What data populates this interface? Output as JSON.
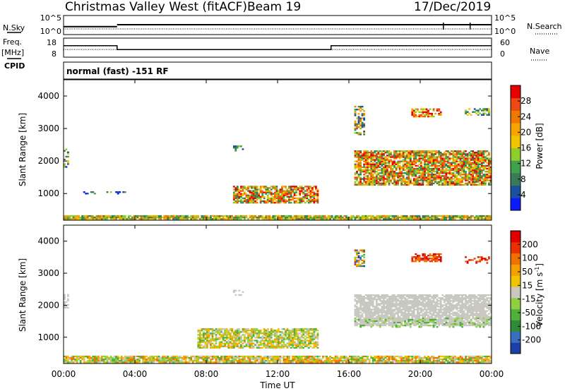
{
  "header": {
    "title": "Christmas Valley West (fitACF)",
    "beam": "Beam 19",
    "date": "17/Dec/2019"
  },
  "left_labels": {
    "nsky": "N.Sky",
    "freq": "Freq.",
    "freq_unit": "[MHz]",
    "cpid": "CPID"
  },
  "right_labels": {
    "nsearch": "N.Search",
    "nave": "Nave"
  },
  "cpid_text": "normal (fast) -151 RF",
  "chart_data": [
    {
      "type": "line",
      "name": "noise-panel",
      "left_ticks": [
        "10^5",
        "10^0"
      ],
      "right_ticks": [
        "10^5",
        "10^0"
      ],
      "series": [
        {
          "name": "N.Sky",
          "style": "solid",
          "level": 0.18,
          "segments": [
            [
              0,
              3,
              0.12
            ],
            [
              3,
              24,
              0.22
            ]
          ]
        },
        {
          "name": "N.Search",
          "style": "dotted",
          "level": 0.15
        }
      ],
      "spikes_hours": [
        21.3,
        22.8
      ]
    },
    {
      "type": "line",
      "name": "freq-panel",
      "left_ticks": [
        "18",
        "8"
      ],
      "right_ticks": [
        "60",
        "0"
      ],
      "freq_segments": [
        {
          "x0": 0,
          "x1": 3,
          "value": 11
        },
        {
          "x0": 3,
          "x1": 15,
          "value": 9
        },
        {
          "x0": 15,
          "x1": 24,
          "value": 11
        }
      ],
      "nave_level_fraction": 0.45
    },
    {
      "type": "heatmap",
      "name": "power",
      "xlabel": "",
      "ylabel": "Slant Range [km]",
      "x_ticks": [
        "00:00",
        "04:00",
        "08:00",
        "12:00",
        "16:00",
        "20:00",
        "00:00"
      ],
      "y_ticks": [
        1000,
        2000,
        3000,
        4000
      ],
      "xlim": [
        0,
        24
      ],
      "ylim": [
        180,
        4500
      ],
      "colorbar_label": "Power [dB]",
      "colorbar_ticks": [
        "4",
        "8",
        "12",
        "16",
        "20",
        "24",
        "28"
      ],
      "colorbar_colors": [
        "#0a1bff",
        "#1d4fa0",
        "#3a7a55",
        "#3fa24a",
        "#8fcd2a",
        "#f0c400",
        "#f5a400",
        "#f07800",
        "#ec4a10",
        "#e60000"
      ],
      "regions": [
        {
          "t0": 0,
          "t1": 24,
          "r0": 200,
          "r1": 330,
          "density": 0.9,
          "c": [
            2,
            7
          ]
        },
        {
          "t0": 0,
          "t1": 0.3,
          "r0": 1800,
          "r1": 2350,
          "density": 0.5,
          "c": [
            0,
            5
          ]
        },
        {
          "t0": 1,
          "t1": 3.5,
          "r0": 980,
          "r1": 1070,
          "density": 0.35,
          "c": [
            0,
            4
          ]
        },
        {
          "t0": 9.5,
          "t1": 14.2,
          "r0": 700,
          "r1": 1200,
          "density": 0.75,
          "c": [
            2,
            9
          ]
        },
        {
          "t0": 9.5,
          "t1": 10,
          "r0": 2300,
          "r1": 2450,
          "density": 0.5,
          "c": [
            1,
            4
          ]
        },
        {
          "t0": 16.3,
          "t1": 24,
          "r0": 1250,
          "r1": 2300,
          "density": 0.8,
          "c": [
            2,
            9
          ]
        },
        {
          "t0": 16.3,
          "t1": 16.9,
          "r0": 2800,
          "r1": 3700,
          "density": 0.5,
          "c": [
            1,
            7
          ]
        },
        {
          "t0": 19.5,
          "t1": 21.2,
          "r0": 3350,
          "r1": 3600,
          "density": 0.6,
          "c": [
            4,
            9
          ]
        },
        {
          "t0": 22.5,
          "t1": 23.9,
          "r0": 3400,
          "r1": 3600,
          "density": 0.4,
          "c": [
            1,
            5
          ]
        }
      ]
    },
    {
      "type": "heatmap",
      "name": "velocity",
      "xlabel": "Time UT",
      "ylabel": "Slant Range [km]",
      "x_ticks": [
        "00:00",
        "04:00",
        "08:00",
        "12:00",
        "16:00",
        "20:00",
        "00:00"
      ],
      "y_ticks": [
        1000,
        2000,
        3000,
        4000
      ],
      "xlim": [
        0,
        24
      ],
      "ylim": [
        180,
        4500
      ],
      "colorbar_label": "Velocity [m s",
      "colorbar_label_sup": "-1",
      "colorbar_ticks": [
        "200",
        "100",
        "50",
        "15",
        "-15",
        "-50",
        "-100",
        "-200"
      ],
      "colorbar_colors": [
        "#1f3fa8",
        "#3a6fc0",
        "#2e8b3a",
        "#52b03a",
        "#8fd040",
        "#c8c8c0",
        "#f0c400",
        "#f5a000",
        "#f07000",
        "#e83000",
        "#e00000"
      ],
      "regions": [
        {
          "t0": 0,
          "t1": 24,
          "r0": 200,
          "r1": 420,
          "density": 0.85,
          "c": [
            3,
            8
          ]
        },
        {
          "t0": 0,
          "t1": 0.3,
          "r0": 1900,
          "r1": 2350,
          "density": 0.5,
          "c": [
            5,
            5
          ]
        },
        {
          "t0": 9.5,
          "t1": 10,
          "r0": 2300,
          "r1": 2450,
          "density": 0.5,
          "c": [
            5,
            5
          ]
        },
        {
          "t0": 7.5,
          "t1": 14.2,
          "r0": 650,
          "r1": 1250,
          "density": 0.75,
          "c": [
            3,
            7
          ]
        },
        {
          "t0": 16.3,
          "t1": 24,
          "r0": 1350,
          "r1": 2300,
          "density": 0.85,
          "c": [
            5,
            5
          ]
        },
        {
          "t0": 16.3,
          "t1": 24,
          "r0": 1300,
          "r1": 1600,
          "density": 0.2,
          "c": [
            3,
            4
          ]
        },
        {
          "t0": 16.3,
          "t1": 16.9,
          "r0": 3200,
          "r1": 3700,
          "density": 0.55,
          "c": [
            0,
            9
          ]
        },
        {
          "t0": 19.5,
          "t1": 21.2,
          "r0": 3350,
          "r1": 3600,
          "density": 0.6,
          "c": [
            8,
            10
          ]
        },
        {
          "t0": 22.5,
          "t1": 23.9,
          "r0": 3300,
          "r1": 3500,
          "density": 0.4,
          "c": [
            8,
            10
          ]
        }
      ]
    }
  ]
}
